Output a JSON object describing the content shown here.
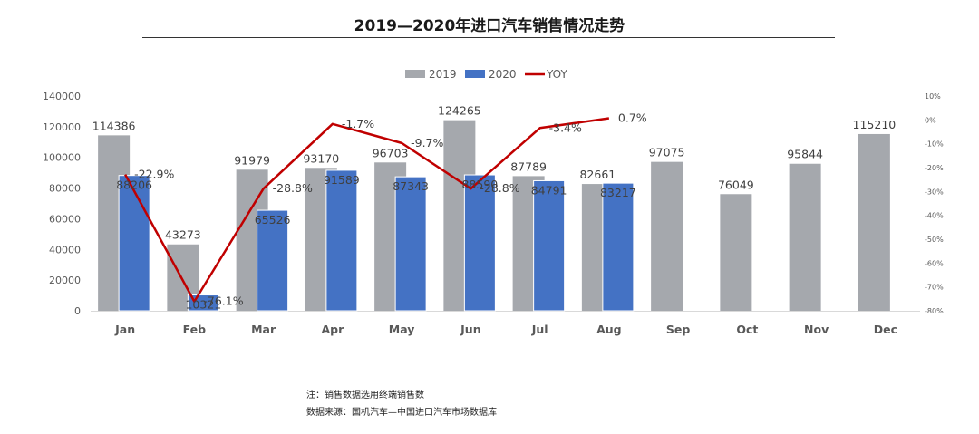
{
  "title": "2019—2020年进口汽车销售情况走势",
  "notes": {
    "line1": "注：销售数据选用终端销售数",
    "line2": "数据来源：国机汽车—中国进口汽车市场数据库"
  },
  "colors": {
    "s2019": "#a5a8ad",
    "s2020": "#4472c4",
    "yoy": "#c00000",
    "axis_text": "#595959",
    "baseline": "#d9d9d9"
  },
  "chart_data": {
    "type": "bar",
    "categories": [
      "Jan",
      "Feb",
      "Mar",
      "Apr",
      "May",
      "Jun",
      "Jul",
      "Aug",
      "Sep",
      "Oct",
      "Nov",
      "Dec"
    ],
    "series": [
      {
        "name": "2019",
        "type": "bar",
        "axis": "left",
        "values": [
          114386,
          43273,
          91979,
          93170,
          96703,
          124265,
          87789,
          82661,
          97075,
          76049,
          95844,
          115210
        ],
        "labels": [
          "114386",
          "43273",
          "91979",
          "93170",
          "96703",
          "124265",
          "87789",
          "82661",
          "97075",
          "76049",
          "95844",
          "115210"
        ]
      },
      {
        "name": "2020",
        "type": "bar",
        "axis": "left",
        "values": [
          88206,
          10321,
          65526,
          91589,
          87343,
          88590,
          84791,
          83217,
          null,
          null,
          null,
          null
        ],
        "labels": [
          "88206",
          "10321",
          "65526",
          "91589",
          "87343",
          "88590",
          "84791",
          "83217",
          "",
          "",
          "",
          ""
        ]
      },
      {
        "name": "YOY",
        "type": "line",
        "axis": "right",
        "values": [
          -22.9,
          -76.1,
          -28.8,
          -1.7,
          -9.7,
          -28.8,
          -3.4,
          0.7,
          null,
          null,
          null,
          null
        ],
        "labels": [
          "-22.9%",
          "-76.1%",
          "-28.8%",
          "-1.7%",
          "-9.7%",
          "-28.8%",
          "-3.4%",
          "0.7%",
          "",
          "",
          "",
          ""
        ]
      }
    ],
    "y_left": {
      "min": 0,
      "max": 140000,
      "ticks": [
        "0",
        "20000",
        "40000",
        "60000",
        "80000",
        "100000",
        "120000",
        "140000"
      ]
    },
    "y_right": {
      "min": -80,
      "max": 10,
      "ticks": [
        "10%",
        "0%",
        "-10%",
        "-20%",
        "-30%",
        "-40%",
        "-50%",
        "-60%",
        "-70%",
        "-80%"
      ]
    },
    "legend": {
      "position": "top",
      "items": [
        "2019",
        "2020",
        "YOY"
      ]
    },
    "grid": false
  }
}
